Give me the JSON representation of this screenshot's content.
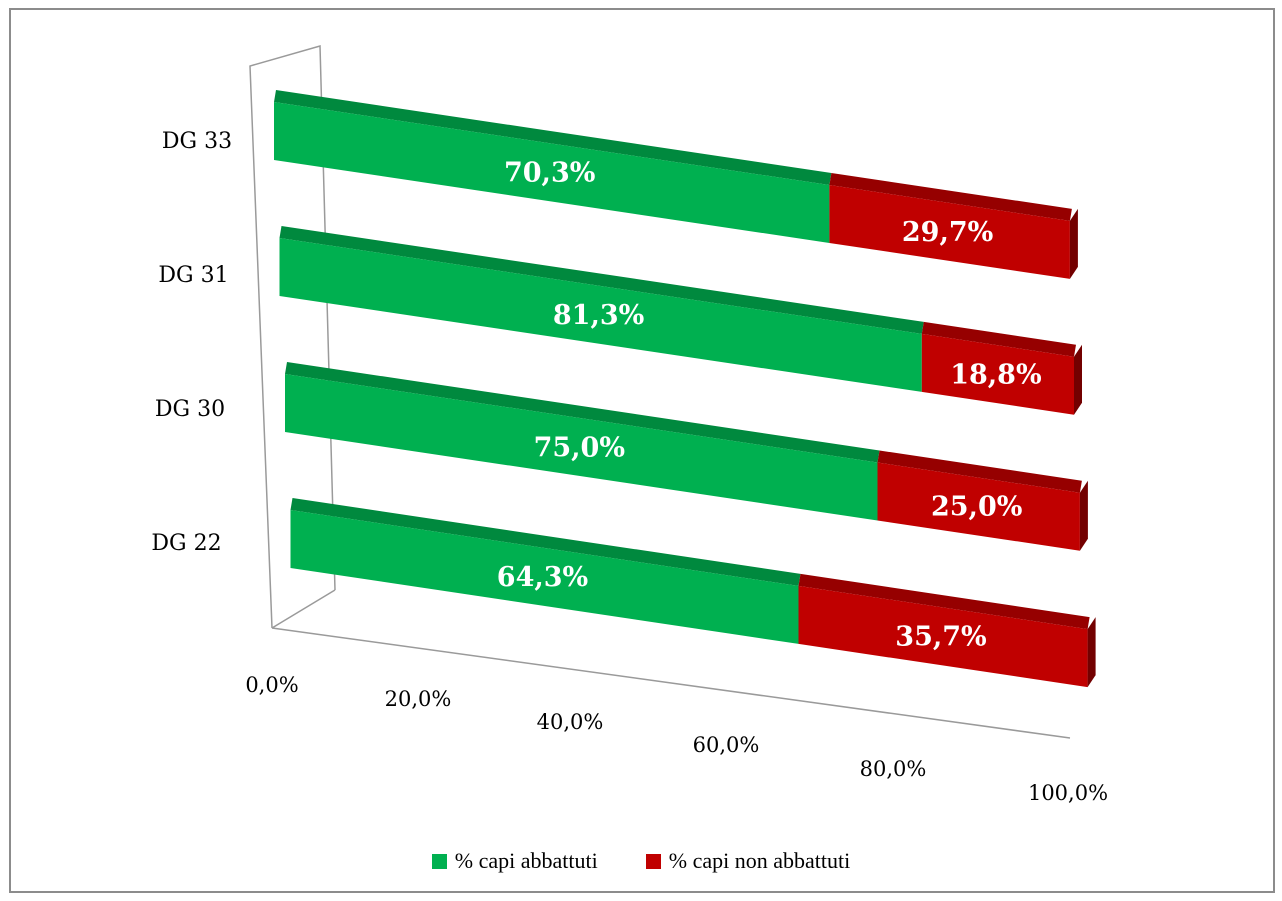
{
  "chart_data": {
    "type": "bar",
    "orientation": "horizontal",
    "stacked": "percent",
    "view": "3d",
    "categories": [
      "DG 22",
      "DG 30",
      "DG 31",
      "DG 33"
    ],
    "series": [
      {
        "name": "% capi abbattuti",
        "color": "#00b050",
        "values": [
          64.3,
          75.0,
          81.3,
          70.3
        ],
        "labels": [
          "64,3%",
          "75,0%",
          "81,3%",
          "70,3%"
        ]
      },
      {
        "name": "% capi non abbattuti",
        "color": "#c00000",
        "values": [
          35.7,
          25.0,
          18.8,
          29.7
        ],
        "labels": [
          "35,7%",
          "25,0%",
          "18,8%",
          "29,7%"
        ]
      }
    ],
    "x_ticks": [
      "0,0%",
      "20,0%",
      "40,0%",
      "60,0%",
      "80,0%",
      "100,0%"
    ],
    "xlim": [
      0,
      100
    ],
    "legend_position": "bottom",
    "grid": false
  }
}
